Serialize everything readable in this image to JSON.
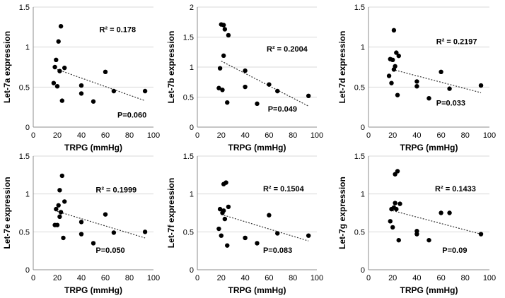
{
  "chart_data": [
    {
      "type": "scatter",
      "xlabel": "TRPG (mmHg)",
      "ylabel": "Let-7a expression",
      "xlim": [
        0,
        100
      ],
      "ylim": [
        0,
        1.5
      ],
      "xticks": [
        "0",
        "20",
        "40",
        "60",
        "80",
        "100"
      ],
      "yticks": [
        "0",
        "0.5",
        "1",
        "1.5"
      ],
      "grid": "horizontal",
      "points": [
        [
          17,
          0.55
        ],
        [
          18,
          0.75
        ],
        [
          19,
          0.84
        ],
        [
          20,
          0.51
        ],
        [
          21,
          1.07
        ],
        [
          22,
          0.7
        ],
        [
          23,
          1.26
        ],
        [
          24,
          0.33
        ],
        [
          26,
          0.74
        ],
        [
          40,
          0.52
        ],
        [
          40,
          0.42
        ],
        [
          50,
          0.32
        ],
        [
          60,
          0.69
        ],
        [
          67,
          0.45
        ],
        [
          93,
          0.45
        ]
      ],
      "trendline": [
        [
          20,
          0.72
        ],
        [
          93,
          0.33
        ]
      ],
      "r2": "R² = 0.178",
      "pvalue": "P=0.060"
    },
    {
      "type": "scatter",
      "xlabel": "TRPG (mmHg)",
      "ylabel": "Let-7b expression",
      "xlim": [
        0,
        100
      ],
      "ylim": [
        0,
        2
      ],
      "xticks": [
        "0",
        "20",
        "40",
        "60",
        "80",
        "100"
      ],
      "yticks": [
        "0",
        "0.5",
        "1",
        "1.5",
        "2"
      ],
      "grid": "horizontal",
      "points": [
        [
          18,
          0.65
        ],
        [
          19,
          0.98
        ],
        [
          20,
          1.71
        ],
        [
          21,
          0.62
        ],
        [
          22,
          1.7
        ],
        [
          22,
          1.19
        ],
        [
          23,
          1.63
        ],
        [
          25,
          0.41
        ],
        [
          26,
          1.53
        ],
        [
          40,
          0.94
        ],
        [
          40,
          0.67
        ],
        [
          50,
          0.39
        ],
        [
          60,
          0.71
        ],
        [
          67,
          0.6
        ],
        [
          93,
          0.52
        ]
      ],
      "trendline": [
        [
          20,
          1.1
        ],
        [
          93,
          0.35
        ]
      ],
      "r2": "R² = 0.2004",
      "pvalue": "P=0.049"
    },
    {
      "type": "scatter",
      "xlabel": "TRPG (mmHg)",
      "ylabel": "Let-7d expression",
      "xlim": [
        0,
        100
      ],
      "ylim": [
        0,
        1.5
      ],
      "xticks": [
        "0",
        "20",
        "40",
        "60",
        "80",
        "100"
      ],
      "yticks": [
        "0",
        "0.5",
        "1",
        "1.5"
      ],
      "grid": "horizontal",
      "points": [
        [
          17,
          0.64
        ],
        [
          18,
          0.85
        ],
        [
          19,
          0.55
        ],
        [
          20,
          0.84
        ],
        [
          21,
          0.72
        ],
        [
          21,
          1.21
        ],
        [
          22,
          0.76
        ],
        [
          23,
          0.93
        ],
        [
          24,
          0.4
        ],
        [
          25,
          0.89
        ],
        [
          40,
          0.57
        ],
        [
          40,
          0.51
        ],
        [
          50,
          0.36
        ],
        [
          60,
          0.69
        ],
        [
          67,
          0.48
        ],
        [
          93,
          0.52
        ]
      ],
      "trendline": [
        [
          20,
          0.72
        ],
        [
          93,
          0.43
        ]
      ],
      "r2": "R² = 0.2197",
      "pvalue": "P=0.033"
    },
    {
      "type": "scatter",
      "xlabel": "TRPG (mmHg)",
      "ylabel": "Let-7e expression",
      "xlim": [
        0,
        100
      ],
      "ylim": [
        0,
        1.5
      ],
      "xticks": [
        "0",
        "20",
        "40",
        "60",
        "80",
        "100"
      ],
      "yticks": [
        "0",
        "0.5",
        "1",
        "1.5"
      ],
      "grid": "horizontal",
      "points": [
        [
          18,
          0.59
        ],
        [
          19,
          0.8
        ],
        [
          20,
          0.59
        ],
        [
          21,
          0.85
        ],
        [
          22,
          1.05
        ],
        [
          22,
          0.7
        ],
        [
          23,
          0.76
        ],
        [
          24,
          1.24
        ],
        [
          25,
          0.42
        ],
        [
          26,
          0.9
        ],
        [
          40,
          0.63
        ],
        [
          40,
          0.47
        ],
        [
          50,
          0.35
        ],
        [
          60,
          0.73
        ],
        [
          67,
          0.49
        ],
        [
          93,
          0.5
        ]
      ],
      "trendline": [
        [
          20,
          0.77
        ],
        [
          93,
          0.42
        ]
      ],
      "r2": "R² = 0.1999",
      "pvalue": "P=0.050"
    },
    {
      "type": "scatter",
      "xlabel": "TRPG (mmHg)",
      "ylabel": "Let-7f expression",
      "xlim": [
        0,
        100
      ],
      "ylim": [
        0,
        1.5
      ],
      "xticks": [
        "0",
        "20",
        "40",
        "60",
        "80",
        "100"
      ],
      "yticks": [
        "0",
        "0.5",
        "1",
        "1.5"
      ],
      "grid": "horizontal",
      "points": [
        [
          18,
          0.54
        ],
        [
          19,
          0.8
        ],
        [
          20,
          0.45
        ],
        [
          21,
          0.75
        ],
        [
          22,
          0.78
        ],
        [
          22,
          1.13
        ],
        [
          23,
          0.67
        ],
        [
          24,
          1.15
        ],
        [
          25,
          0.32
        ],
        [
          26,
          0.83
        ],
        [
          40,
          0.42
        ],
        [
          40,
          0.42
        ],
        [
          50,
          0.35
        ],
        [
          60,
          0.72
        ],
        [
          67,
          0.48
        ],
        [
          93,
          0.45
        ]
      ],
      "trendline": [
        [
          20,
          0.73
        ],
        [
          93,
          0.38
        ]
      ],
      "r2": "R² = 0.1504",
      "pvalue": "P=0.083"
    },
    {
      "type": "scatter",
      "xlabel": "TRPG (mmHg)",
      "ylabel": "Let-7g expression",
      "xlim": [
        0,
        100
      ],
      "ylim": [
        0,
        1.5
      ],
      "xticks": [
        "0",
        "20",
        "40",
        "60",
        "80",
        "100"
      ],
      "yticks": [
        "0",
        "0.5",
        "1",
        "1.5"
      ],
      "grid": "horizontal",
      "points": [
        [
          18,
          0.64
        ],
        [
          19,
          0.8
        ],
        [
          20,
          0.56
        ],
        [
          21,
          0.82
        ],
        [
          22,
          1.26
        ],
        [
          22,
          0.88
        ],
        [
          23,
          0.8
        ],
        [
          24,
          1.3
        ],
        [
          25,
          0.39
        ],
        [
          26,
          0.87
        ],
        [
          40,
          0.51
        ],
        [
          40,
          0.47
        ],
        [
          50,
          0.39
        ],
        [
          60,
          0.75
        ],
        [
          67,
          0.75
        ],
        [
          93,
          0.47
        ]
      ],
      "trendline": [
        [
          20,
          0.78
        ],
        [
          93,
          0.47
        ]
      ],
      "r2": "R² = 0.1433",
      "pvalue": "P=0.09"
    }
  ]
}
